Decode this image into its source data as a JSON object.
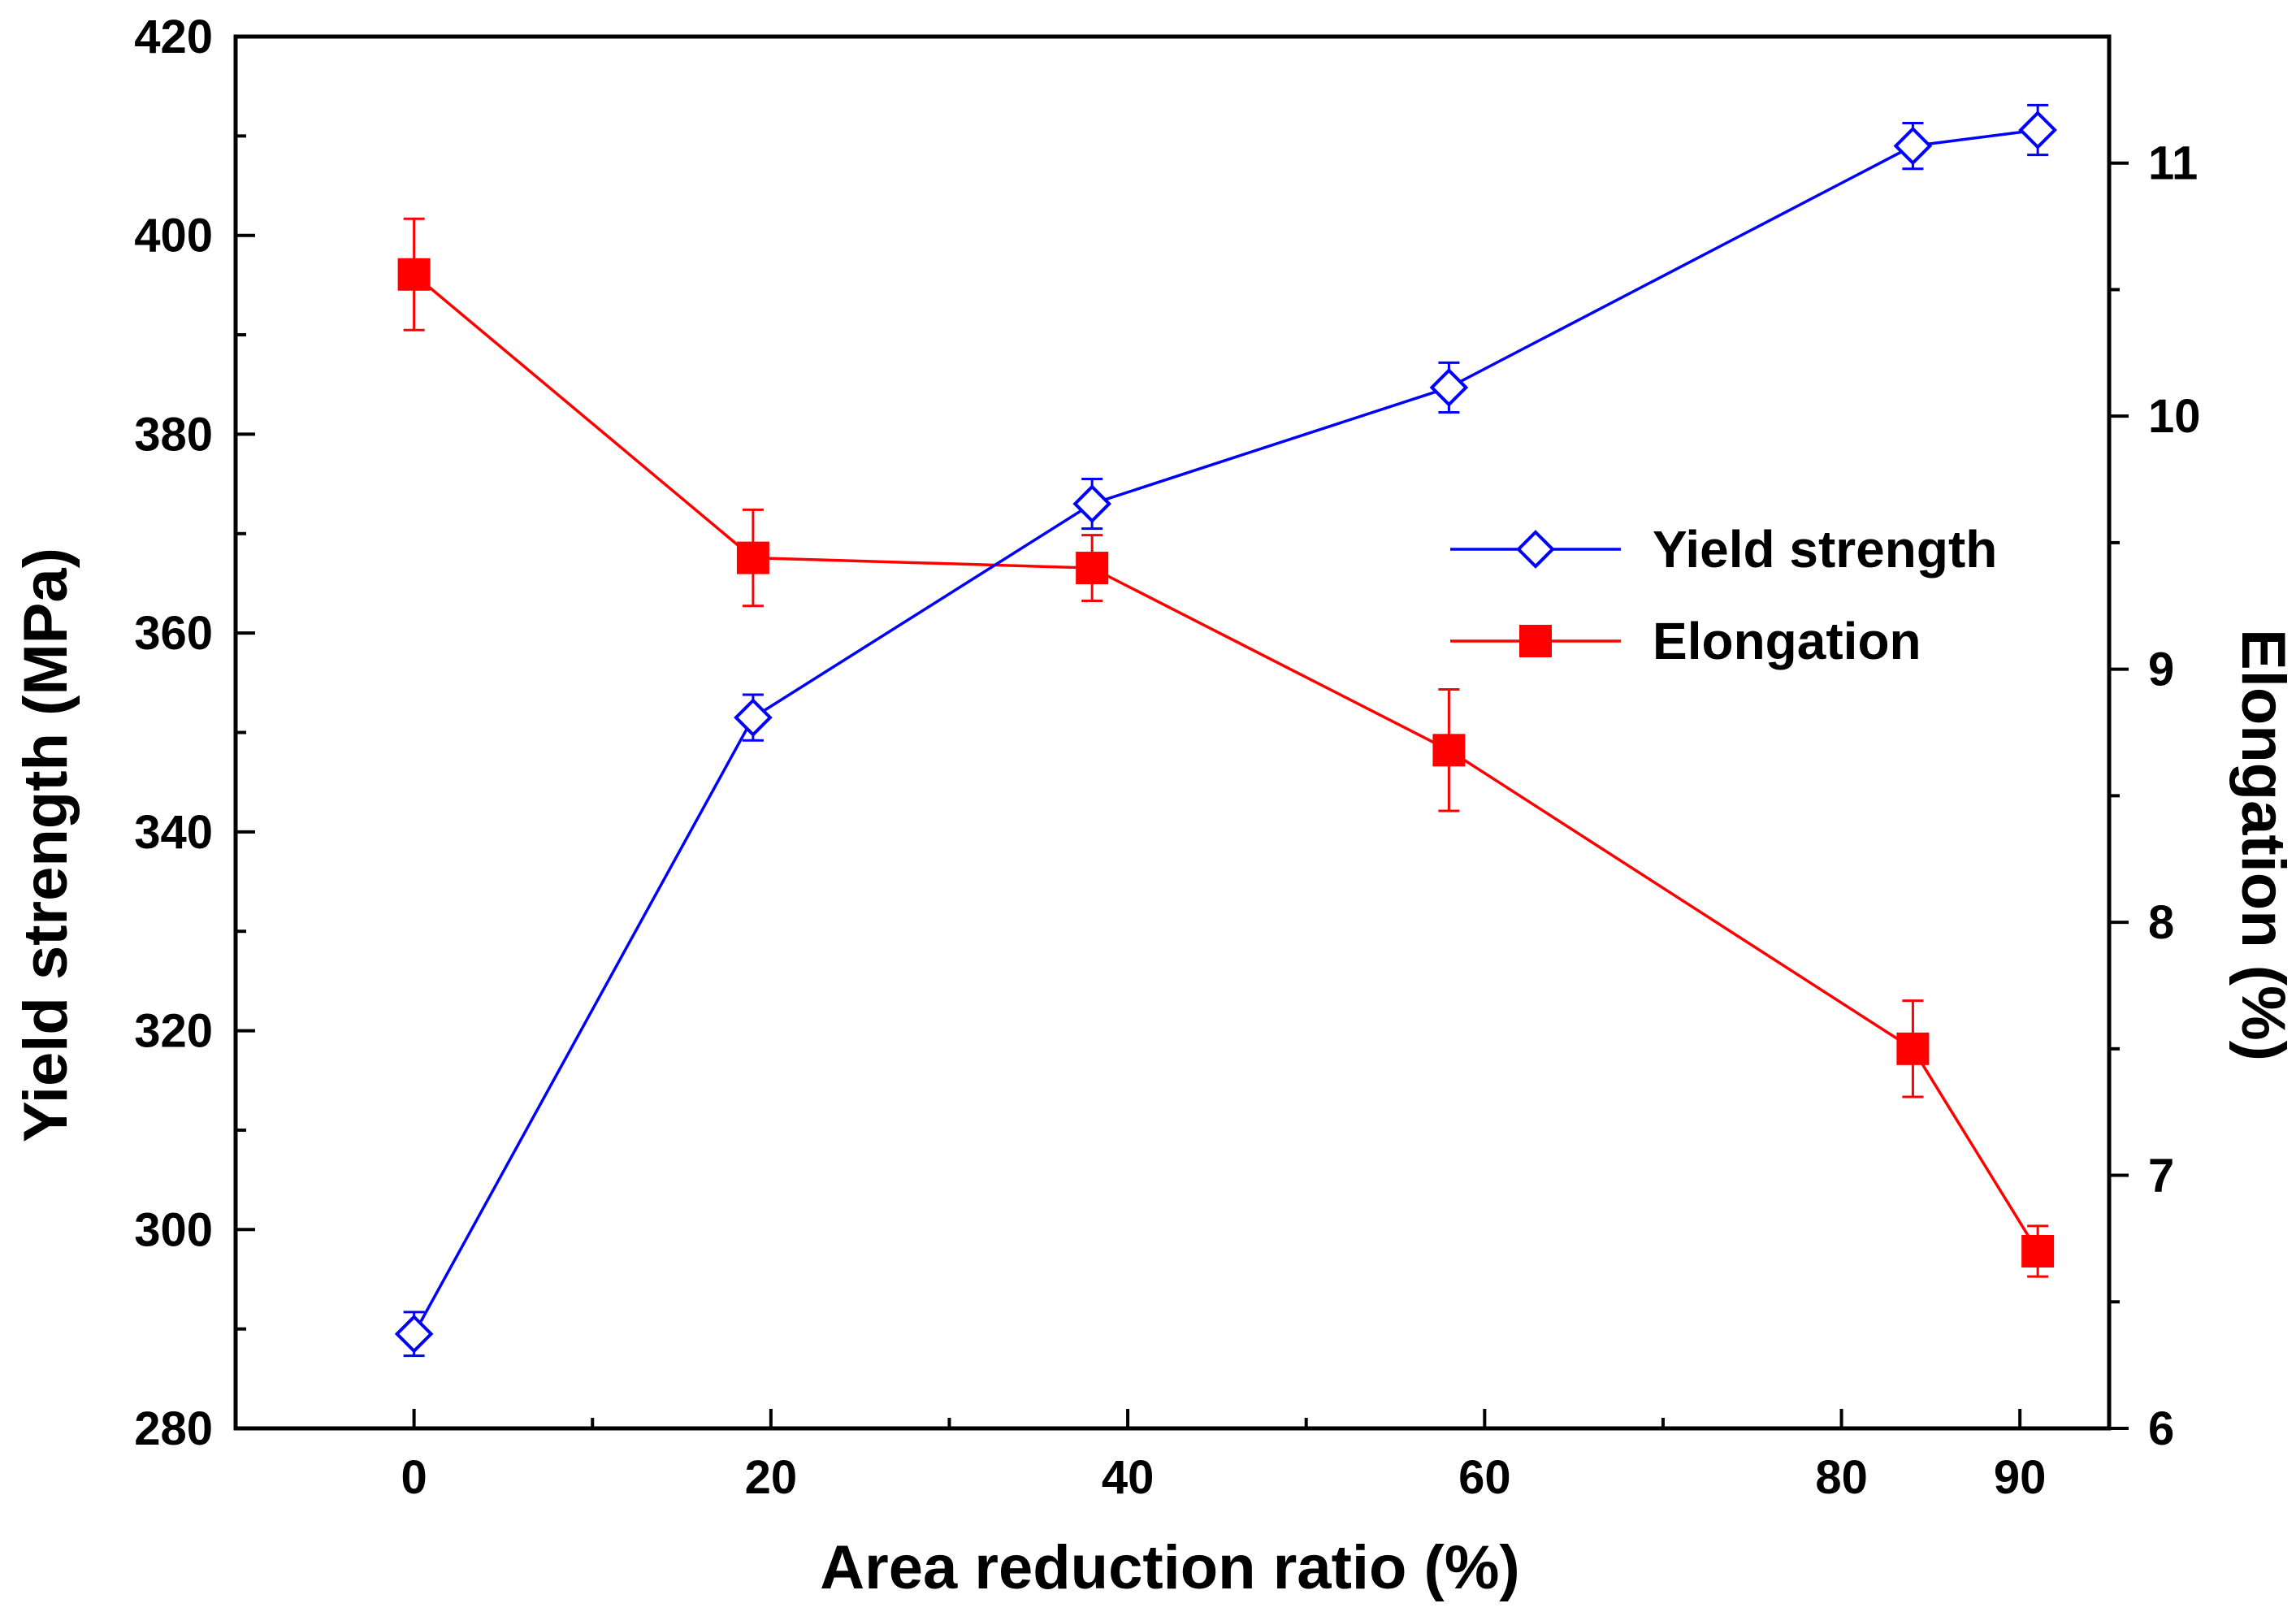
{
  "chart_data": {
    "type": "line",
    "xlabel": "Area reduction ratio (%)",
    "ylabel_left": "Yield strength (MPa)",
    "ylabel_right": "Elongation (%)",
    "xlim": [
      -10,
      95
    ],
    "ylim_left": [
      280,
      420
    ],
    "ylim_right": [
      6,
      11.5
    ],
    "x_ticks": [
      0,
      20,
      40,
      60,
      80,
      90
    ],
    "x_minor_ticks": [
      10,
      30,
      50,
      70
    ],
    "y_left_ticks": [
      280,
      300,
      320,
      340,
      360,
      380,
      400,
      420
    ],
    "y_left_minor_ticks": [
      290,
      310,
      330,
      350,
      370,
      390,
      410
    ],
    "y_right_ticks": [
      6,
      7,
      8,
      9,
      10,
      11
    ],
    "y_right_minor_ticks": [
      6.5,
      7.5,
      8.5,
      9.5,
      10.5
    ],
    "grid": false,
    "legend_position": "center-right",
    "series": [
      {
        "name": "Yield strength",
        "axis": "left",
        "color": "#0000ff",
        "marker": "open-diamond",
        "x": [
          0,
          19,
          38,
          58,
          84,
          91
        ],
        "y": [
          289.5,
          351.5,
          373,
          384.7,
          409,
          410.6
        ],
        "error": [
          2.2,
          2.3,
          2.5,
          2.5,
          2.3,
          2.5
        ]
      },
      {
        "name": "Elongation",
        "axis": "right",
        "color": "#ff0000",
        "marker": "filled-square",
        "x": [
          0,
          19,
          38,
          58,
          84,
          91
        ],
        "y": [
          10.56,
          9.44,
          9.4,
          8.68,
          7.5,
          6.7
        ],
        "error": [
          0.22,
          0.19,
          0.13,
          0.24,
          0.19,
          0.1
        ]
      }
    ]
  }
}
